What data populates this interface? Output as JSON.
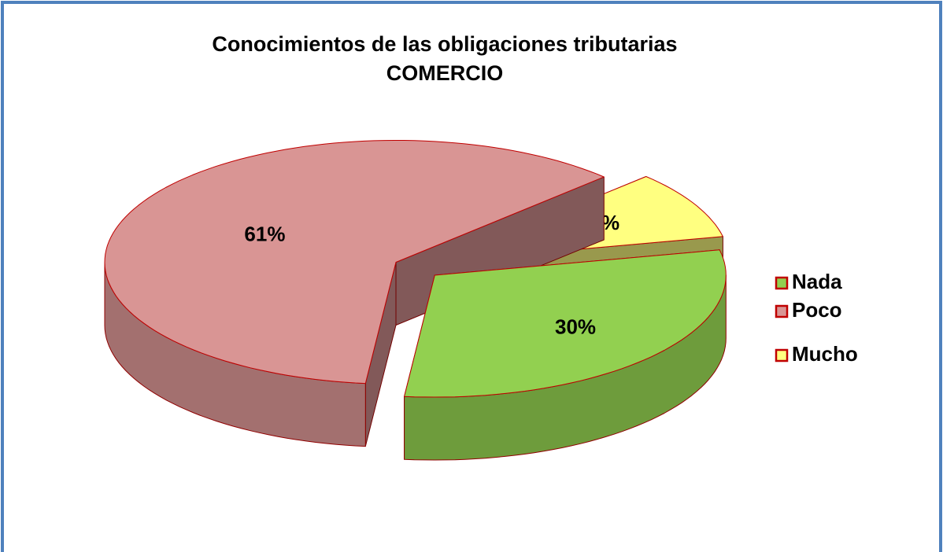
{
  "chart_data": {
    "type": "pie",
    "title": "Conocimientos de las obligaciones tributarias",
    "subtitle": "COMERCIO",
    "categories": [
      "Nada",
      "Poco",
      "Mucho"
    ],
    "values": [
      30,
      61,
      9
    ],
    "value_labels": [
      "30%",
      "61%",
      "9%"
    ],
    "colors": [
      "#92d050",
      "#d99594",
      "#ffff80"
    ],
    "edge_color": "#c00000",
    "legend": "right"
  }
}
